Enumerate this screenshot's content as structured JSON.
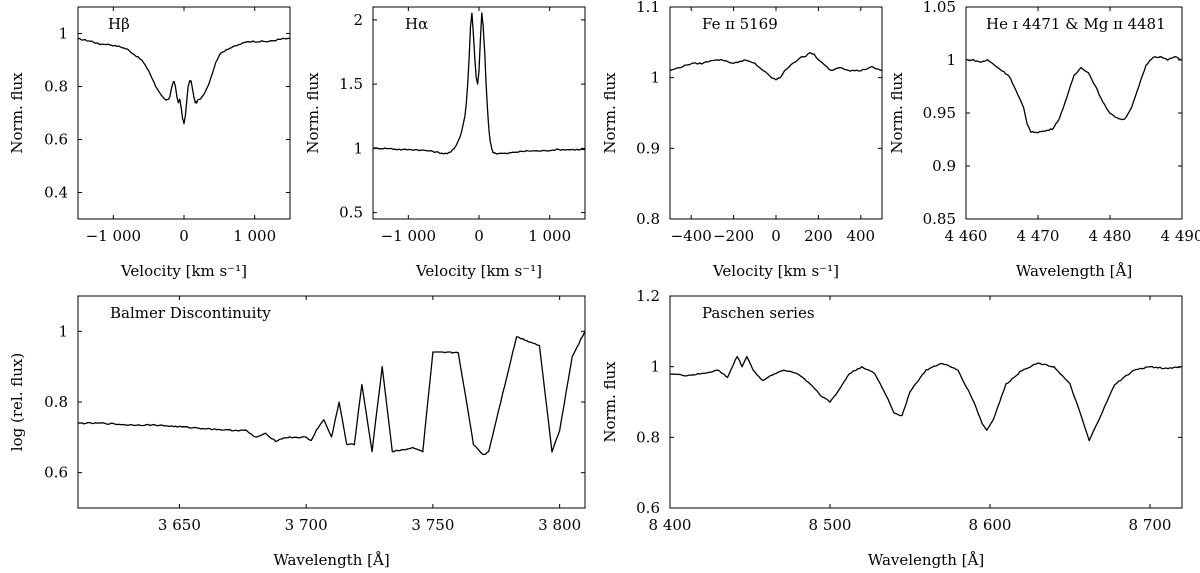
{
  "chart_data": [
    {
      "type": "line",
      "annotation": "Hβ",
      "xlabel": "Velocity [km s⁻¹]",
      "ylabel": "Norm. flux",
      "xlim": [
        -1500,
        1500
      ],
      "ylim": [
        0.3,
        1.1
      ],
      "xticks": [
        {
          "v": -1000,
          "label": "−1 000"
        },
        {
          "v": 0,
          "label": "0"
        },
        {
          "v": 1000,
          "label": "1 000"
        }
      ],
      "yticks": [
        {
          "v": 0.4,
          "label": "0.4"
        },
        {
          "v": 0.6,
          "label": "0.6"
        },
        {
          "v": 0.8,
          "label": "0.8"
        },
        {
          "v": 1.0,
          "label": "1"
        }
      ],
      "series": [
        {
          "x": [
            -1500,
            -1400,
            -1300,
            -1200,
            -1100,
            -1000,
            -900,
            -800,
            -700,
            -600,
            -500,
            -450,
            -400,
            -350,
            -300,
            -250,
            -220,
            -200,
            -180,
            -160,
            -140,
            -120,
            -100,
            -80,
            -60,
            -40,
            -20,
            0,
            20,
            40,
            60,
            80,
            100,
            120,
            140,
            160,
            180,
            200,
            220,
            250,
            300,
            350,
            400,
            450,
            500,
            600,
            700,
            800,
            900,
            1000,
            1100,
            1200,
            1300,
            1400,
            1500
          ],
          "y": [
            0.98,
            0.975,
            0.97,
            0.96,
            0.96,
            0.955,
            0.95,
            0.94,
            0.92,
            0.9,
            0.86,
            0.83,
            0.8,
            0.78,
            0.76,
            0.75,
            0.75,
            0.76,
            0.79,
            0.81,
            0.82,
            0.8,
            0.76,
            0.74,
            0.75,
            0.72,
            0.68,
            0.66,
            0.69,
            0.75,
            0.8,
            0.82,
            0.82,
            0.79,
            0.76,
            0.74,
            0.74,
            0.75,
            0.75,
            0.76,
            0.78,
            0.81,
            0.85,
            0.89,
            0.92,
            0.94,
            0.95,
            0.96,
            0.97,
            0.97,
            0.97,
            0.97,
            0.975,
            0.98,
            0.98
          ]
        }
      ]
    },
    {
      "type": "line",
      "annotation": "Hα",
      "xlabel": "Velocity [km s⁻¹]",
      "ylabel": "Norm. flux",
      "xlim": [
        -1500,
        1500
      ],
      "ylim": [
        0.45,
        2.1
      ],
      "xticks": [
        {
          "v": -1000,
          "label": "−1 000"
        },
        {
          "v": 0,
          "label": "0"
        },
        {
          "v": 1000,
          "label": "1 000"
        }
      ],
      "yticks": [
        {
          "v": 0.5,
          "label": "0.5"
        },
        {
          "v": 1.0,
          "label": "1"
        },
        {
          "v": 1.5,
          "label": "1.5"
        },
        {
          "v": 2.0,
          "label": "2"
        }
      ],
      "series": [
        {
          "x": [
            -1500,
            -1300,
            -1100,
            -900,
            -700,
            -600,
            -500,
            -450,
            -400,
            -350,
            -300,
            -250,
            -200,
            -180,
            -160,
            -140,
            -120,
            -100,
            -80,
            -60,
            -40,
            -20,
            0,
            20,
            40,
            60,
            80,
            100,
            120,
            140,
            160,
            180,
            200,
            250,
            300,
            350,
            400,
            500,
            700,
            900,
            1100,
            1300,
            1500
          ],
          "y": [
            1.0,
            1.0,
            0.99,
            0.99,
            0.98,
            0.97,
            0.96,
            0.96,
            0.97,
            1.0,
            1.05,
            1.12,
            1.25,
            1.35,
            1.5,
            1.7,
            1.95,
            2.05,
            1.9,
            1.7,
            1.55,
            1.5,
            1.6,
            1.85,
            2.05,
            1.95,
            1.75,
            1.5,
            1.3,
            1.15,
            1.05,
            1.0,
            0.97,
            0.96,
            0.96,
            0.96,
            0.96,
            0.97,
            0.98,
            0.98,
            0.99,
            0.99,
            0.99
          ]
        }
      ]
    },
    {
      "type": "line",
      "annotation": "Fe ɪɪ 5169",
      "xlabel": "Velocity [km s⁻¹]",
      "ylabel": "Norm. flux",
      "xlim": [
        -500,
        500
      ],
      "ylim": [
        0.8,
        1.1
      ],
      "xticks": [
        {
          "v": -400,
          "label": "−400"
        },
        {
          "v": -200,
          "label": "−200"
        },
        {
          "v": 0,
          "label": "0"
        },
        {
          "v": 200,
          "label": "200"
        },
        {
          "v": 400,
          "label": "400"
        }
      ],
      "yticks": [
        {
          "v": 0.8,
          "label": "0.8"
        },
        {
          "v": 0.9,
          "label": "0.9"
        },
        {
          "v": 1.0,
          "label": "1"
        },
        {
          "v": 1.1,
          "label": "1.1"
        }
      ],
      "series": [
        {
          "x": [
            -500,
            -450,
            -400,
            -350,
            -300,
            -250,
            -200,
            -150,
            -100,
            -60,
            -40,
            -20,
            0,
            20,
            40,
            60,
            80,
            100,
            120,
            140,
            160,
            180,
            200,
            220,
            240,
            260,
            300,
            350,
            400,
            450,
            500
          ],
          "y": [
            1.01,
            1.015,
            1.02,
            1.02,
            1.025,
            1.025,
            1.02,
            1.025,
            1.02,
            1.01,
            1.005,
            1.0,
            0.997,
            1.0,
            1.01,
            1.015,
            1.02,
            1.025,
            1.03,
            1.03,
            1.035,
            1.033,
            1.025,
            1.02,
            1.015,
            1.01,
            1.015,
            1.01,
            1.01,
            1.015,
            1.01
          ]
        }
      ]
    },
    {
      "type": "line",
      "annotation": "He ɪ 4471 & Mg ɪɪ 4481",
      "xlabel": "Wavelength [Å]",
      "ylabel": "Norm. flux",
      "xlim": [
        4460,
        4490
      ],
      "ylim": [
        0.85,
        1.05
      ],
      "xticks": [
        {
          "v": 4460,
          "label": "4 460"
        },
        {
          "v": 4470,
          "label": "4 470"
        },
        {
          "v": 4480,
          "label": "4 480"
        },
        {
          "v": 4490,
          "label": "4 490"
        }
      ],
      "yticks": [
        {
          "v": 0.85,
          "label": "0.85"
        },
        {
          "v": 0.9,
          "label": "0.9"
        },
        {
          "v": 0.95,
          "label": "0.95"
        },
        {
          "v": 1.0,
          "label": "1"
        },
        {
          "v": 1.05,
          "label": "1.05"
        }
      ],
      "series": [
        {
          "x": [
            4460,
            4461,
            4462,
            4463,
            4464,
            4465,
            4466,
            4467,
            4468,
            4468.5,
            4469,
            4470,
            4471,
            4472,
            4473,
            4474,
            4475,
            4476,
            4477,
            4478,
            4479,
            4480,
            4481,
            4482,
            4483,
            4484,
            4485,
            4486,
            4487,
            4488,
            4489,
            4490
          ],
          "y": [
            1.0,
            1.0,
            0.998,
            1.0,
            0.995,
            0.99,
            0.985,
            0.97,
            0.955,
            0.94,
            0.932,
            0.932,
            0.933,
            0.935,
            0.945,
            0.965,
            0.985,
            0.993,
            0.988,
            0.975,
            0.96,
            0.95,
            0.945,
            0.944,
            0.955,
            0.975,
            0.995,
            1.003,
            1.003,
            1.0,
            1.003,
            1.0
          ]
        }
      ]
    },
    {
      "type": "line",
      "annotation": "Balmer Discontinuity",
      "xlabel": "Wavelength [Å]",
      "ylabel": "log (rel. flux)",
      "xlim": [
        3610,
        3810
      ],
      "ylim": [
        0.5,
        1.1
      ],
      "xticks": [
        {
          "v": 3650,
          "label": "3 650"
        },
        {
          "v": 3700,
          "label": "3 700"
        },
        {
          "v": 3750,
          "label": "3 750"
        },
        {
          "v": 3800,
          "label": "3 800"
        }
      ],
      "yticks": [
        {
          "v": 0.6,
          "label": "0.6"
        },
        {
          "v": 0.8,
          "label": "0.8"
        },
        {
          "v": 1.0,
          "label": "1"
        }
      ],
      "series": [
        {
          "x": [
            3610,
            3620,
            3630,
            3640,
            3650,
            3660,
            3670,
            3676,
            3680,
            3684,
            3688,
            3692,
            3696,
            3700,
            3702,
            3704,
            3707,
            3710,
            3713,
            3716,
            3719,
            3722,
            3726,
            3730,
            3734,
            3742,
            3746,
            3750,
            3760,
            3766,
            3770,
            3772,
            3783,
            3792,
            3797,
            3800,
            3805,
            3810
          ],
          "y": [
            0.74,
            0.74,
            0.735,
            0.735,
            0.73,
            0.725,
            0.72,
            0.72,
            0.7,
            0.71,
            0.69,
            0.7,
            0.7,
            0.7,
            0.69,
            0.72,
            0.75,
            0.7,
            0.8,
            0.68,
            0.68,
            0.85,
            0.66,
            0.9,
            0.66,
            0.67,
            0.66,
            0.94,
            0.94,
            0.68,
            0.65,
            0.66,
            0.985,
            0.96,
            0.66,
            0.72,
            0.93,
            1.0
          ]
        }
      ]
    },
    {
      "type": "line",
      "annotation": "Paschen series",
      "xlabel": "Wavelength [Å]",
      "ylabel": "Norm. flux",
      "xlim": [
        8400,
        8720
      ],
      "ylim": [
        0.6,
        1.2
      ],
      "xticks": [
        {
          "v": 8400,
          "label": "8 400"
        },
        {
          "v": 8500,
          "label": "8 500"
        },
        {
          "v": 8600,
          "label": "8 600"
        },
        {
          "v": 8700,
          "label": "8 700"
        }
      ],
      "yticks": [
        {
          "v": 0.6,
          "label": "0.6"
        },
        {
          "v": 0.8,
          "label": "0.8"
        },
        {
          "v": 1.0,
          "label": "1"
        },
        {
          "v": 1.2,
          "label": "1.2"
        }
      ],
      "series": [
        {
          "x": [
            8400,
            8410,
            8420,
            8430,
            8436,
            8442,
            8445,
            8448,
            8452,
            8458,
            8465,
            8472,
            8480,
            8488,
            8494,
            8500,
            8505,
            8512,
            8520,
            8528,
            8535,
            8540,
            8545,
            8550,
            8560,
            8570,
            8580,
            8590,
            8595,
            8598,
            8602,
            8610,
            8620,
            8630,
            8640,
            8650,
            8657,
            8662,
            8668,
            8678,
            8690,
            8700,
            8710,
            8720
          ],
          "y": [
            0.98,
            0.975,
            0.98,
            0.99,
            0.97,
            1.03,
            1.0,
            1.03,
            0.99,
            0.96,
            0.98,
            0.99,
            0.98,
            0.95,
            0.92,
            0.9,
            0.93,
            0.98,
            1.0,
            0.98,
            0.92,
            0.87,
            0.86,
            0.93,
            0.99,
            1.01,
            0.99,
            0.9,
            0.84,
            0.82,
            0.85,
            0.95,
            0.99,
            1.01,
            1.0,
            0.95,
            0.86,
            0.79,
            0.85,
            0.95,
            0.99,
            1.0,
            0.995,
            1.0
          ]
        }
      ]
    }
  ]
}
